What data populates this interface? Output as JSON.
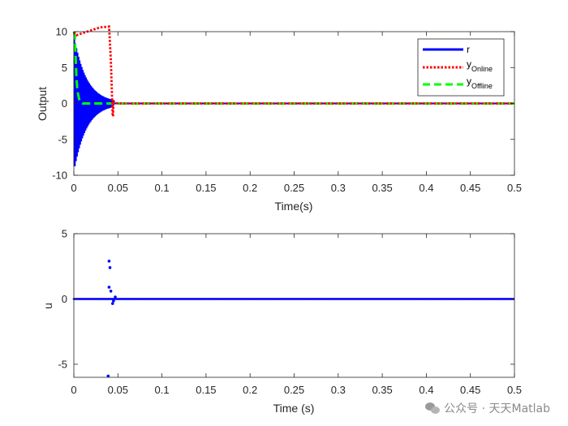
{
  "chart_data": [
    {
      "type": "line",
      "ylabel": "Output",
      "xlabel": "Time(s)",
      "xlim": [
        0,
        0.5
      ],
      "ylim": [
        -10,
        10
      ],
      "xticks": [
        "0",
        "0.05",
        "0.1",
        "0.15",
        "0.2",
        "0.25",
        "0.3",
        "0.35",
        "0.4",
        "0.45",
        "0.5"
      ],
      "yticks": [
        "10",
        "5",
        "0",
        "-5",
        "-10"
      ],
      "legend_position": "top-right",
      "legend": [
        {
          "base": "r",
          "sub": ""
        },
        {
          "base": "y",
          "sub": "Online"
        },
        {
          "base": "y",
          "sub": "Offline"
        }
      ],
      "series": [
        {
          "key": "r",
          "color": "#0000ff",
          "style": "solid",
          "note_shape": "oscillating square wave with decaying envelope",
          "envelope_start": 9,
          "decay_end_x": 0.045,
          "half_period_s": 0.0006,
          "settled_value": 0
        },
        {
          "key": "y_online",
          "color": "#ff0000",
          "style": "dotted",
          "x": [
            0,
            0.003,
            0.01,
            0.02,
            0.03,
            0.04,
            0.042,
            0.044,
            0.0445,
            0.045,
            0.047,
            0.05,
            0.5
          ],
          "y": [
            9.9,
            9.5,
            9.8,
            10.2,
            10.6,
            10.7,
            6.0,
            -1.5,
            -1.8,
            0.3,
            0.1,
            0,
            0
          ]
        },
        {
          "key": "y_offline",
          "color": "#00ff00",
          "style": "dashed",
          "x": [
            0,
            0.001,
            0.002,
            0.003,
            0.004,
            0.006,
            0.008,
            0.01,
            0.5
          ],
          "y": [
            10,
            9.5,
            6.5,
            3.5,
            1.8,
            0.6,
            0.15,
            0,
            0
          ]
        }
      ]
    },
    {
      "type": "scatter",
      "ylabel": "u",
      "xlabel": "Time (s)",
      "xlim": [
        0,
        0.5
      ],
      "ylim": [
        -6,
        5
      ],
      "xticks": [
        "0",
        "0.05",
        "0.1",
        "0.15",
        "0.2",
        "0.25",
        "0.3",
        "0.35",
        "0.4",
        "0.45",
        "0.5"
      ],
      "yticks": [
        "5",
        "0",
        "-5"
      ],
      "series": [
        {
          "key": "u",
          "color": "#0000ff",
          "marker": ".",
          "baseline_value": 0,
          "baseline_step_s": 0.0012,
          "spikes": [
            {
              "x": 0.04,
              "y": 2.9
            },
            {
              "x": 0.041,
              "y": 2.4
            },
            {
              "x": 0.04,
              "y": 0.9
            },
            {
              "x": 0.042,
              "y": 0.6
            },
            {
              "x": 0.044,
              "y": -0.35
            },
            {
              "x": 0.045,
              "y": -0.15
            },
            {
              "x": 0.047,
              "y": 0.15
            },
            {
              "x": 0.039,
              "y": -5.9
            }
          ]
        }
      ]
    }
  ],
  "watermark": {
    "text": "公众号 · 天天Matlab",
    "icon": "wechat-icon"
  }
}
